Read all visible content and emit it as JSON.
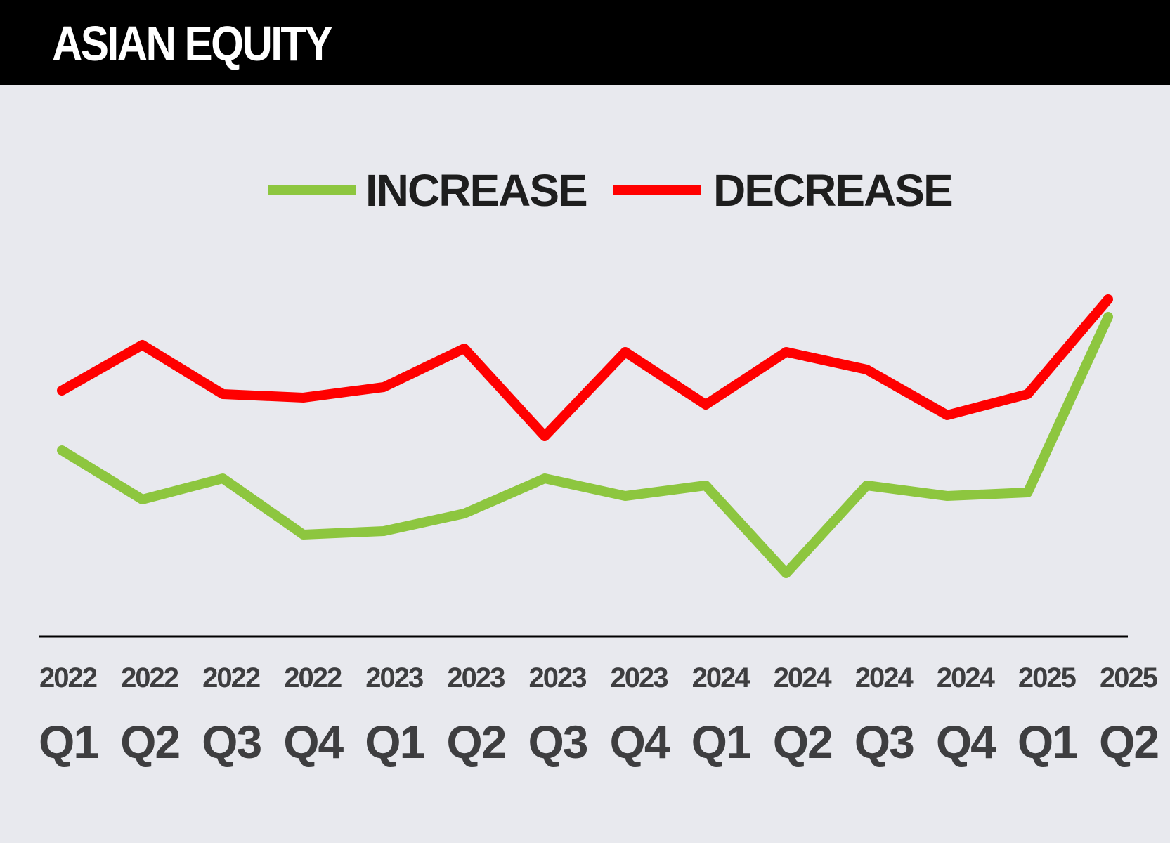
{
  "title": "ASIAN EQUITY",
  "colors": {
    "increase": "#8dc63f",
    "decrease": "#ff0000",
    "background": "#e8e9ee",
    "title_bar": "#000000",
    "axis": "#000000",
    "tick_text": "#3e3e40"
  },
  "chart_data": {
    "type": "line",
    "title": "ASIAN EQUITY",
    "categories": [
      {
        "year": "2022",
        "quarter": "Q1"
      },
      {
        "year": "2022",
        "quarter": "Q2"
      },
      {
        "year": "2022",
        "quarter": "Q3"
      },
      {
        "year": "2022",
        "quarter": "Q4"
      },
      {
        "year": "2023",
        "quarter": "Q1"
      },
      {
        "year": "2023",
        "quarter": "Q2"
      },
      {
        "year": "2023",
        "quarter": "Q3"
      },
      {
        "year": "2023",
        "quarter": "Q4"
      },
      {
        "year": "2024",
        "quarter": "Q1"
      },
      {
        "year": "2024",
        "quarter": "Q2"
      },
      {
        "year": "2024",
        "quarter": "Q3"
      },
      {
        "year": "2024",
        "quarter": "Q4"
      },
      {
        "year": "2025",
        "quarter": "Q1"
      },
      {
        "year": "2025",
        "quarter": "Q2"
      }
    ],
    "series": [
      {
        "name": "INCREASE",
        "color": "#8dc63f",
        "values": [
          48,
          41,
          44,
          36,
          36.5,
          39,
          44,
          41.5,
          43,
          30.5,
          43,
          41.5,
          42,
          67
        ]
      },
      {
        "name": "DECREASE",
        "color": "#ff0000",
        "values": [
          56.5,
          63,
          56,
          55.5,
          57,
          62.5,
          50,
          62,
          54.5,
          62,
          59.5,
          53,
          56,
          69.5
        ]
      }
    ],
    "ylim": [
      0,
      100
    ],
    "grid": false,
    "legend": "top-center",
    "xlabel": "",
    "ylabel": ""
  }
}
